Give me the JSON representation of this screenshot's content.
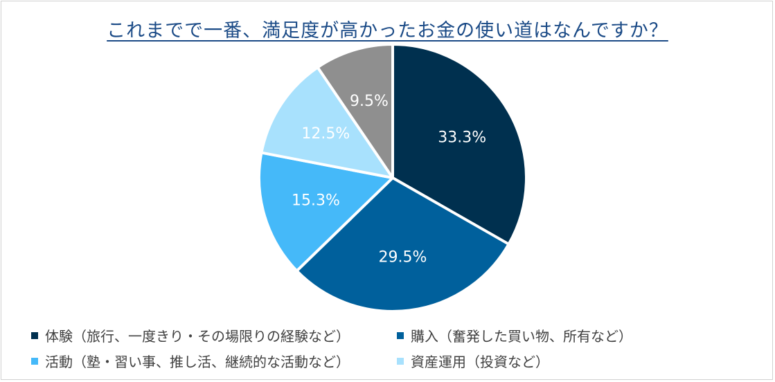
{
  "chart_data": {
    "type": "pie",
    "title": "これまでで一番、満足度が高かったお金の使い道はなんですか？",
    "slices": [
      {
        "label": "体験（旅行、一度きり・その場限りの経験など）",
        "value": 33.3,
        "value_label": "33.3%",
        "color": "#00304f"
      },
      {
        "label": "購入（奮発した買い物、所有など）",
        "value": 29.5,
        "value_label": "29.5%",
        "color": "#00609c"
      },
      {
        "label": "活動（塾・習い事、推し活、継続的な活動など）",
        "value": 15.3,
        "value_label": "15.3%",
        "color": "#45b9f9"
      },
      {
        "label": "資産運用（投資など）",
        "value": 12.5,
        "value_label": "12.5%",
        "color": "#a8e1fd"
      },
      {
        "label": "",
        "value": 9.5,
        "value_label": "9.5%",
        "color": "#8f8f8f"
      }
    ],
    "legend_placement": "bottom"
  }
}
